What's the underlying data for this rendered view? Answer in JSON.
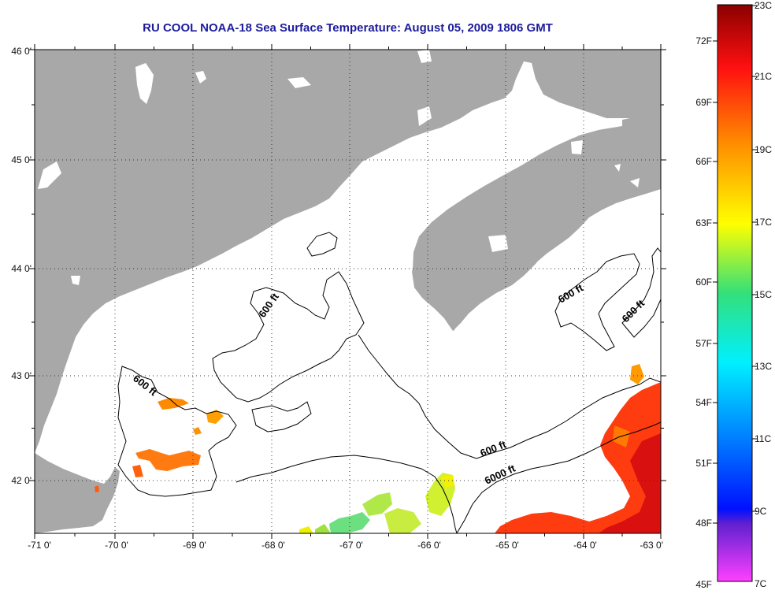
{
  "title": "RU COOL  NOAA-18  Sea Surface Temperature:  August 05, 2009 1806 GMT",
  "map": {
    "lon_ticks": [
      "-71 0'",
      "-70 0'",
      "-69 0'",
      "-68 0'",
      "-67 0'",
      "-66 0'",
      "-65 0'",
      "-64 0'",
      "-63 0'"
    ],
    "lat_ticks": [
      "46 0'",
      "45 0'",
      "44 0'",
      "43 0'",
      "42 0'"
    ],
    "contour_labels": [
      {
        "text": "600 ft"
      },
      {
        "text": "600 ft"
      },
      {
        "text": "600 ft"
      },
      {
        "text": "600 ft"
      },
      {
        "text": "600 ft"
      },
      {
        "text": "6000 ft"
      }
    ],
    "colors": {
      "land": "#a8a8a8",
      "water": "#ffffff",
      "contour": "#000000"
    }
  },
  "colorbar": {
    "fahrenheit_labels": [
      "72F",
      "69F",
      "66F",
      "63F",
      "60F",
      "57F",
      "54F",
      "51F",
      "48F",
      "45F"
    ],
    "celsius_labels": [
      "23C",
      "21C",
      "19C",
      "17C",
      "15C",
      "13C",
      "11C",
      "9C",
      "7C"
    ],
    "stops": [
      "#8b0000",
      "#ff1010",
      "#ff8c00",
      "#ffff00",
      "#33e07a",
      "#00f0ff",
      "#0080ff",
      "#0010ff",
      "#6020d0",
      "#ff40ff"
    ]
  }
}
